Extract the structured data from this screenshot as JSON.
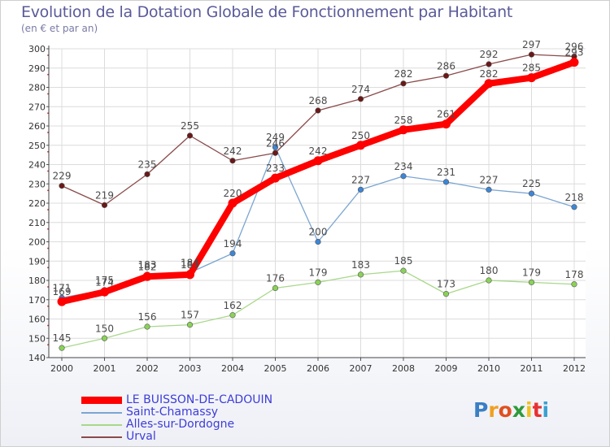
{
  "header": {
    "title": "Evolution de la Dotation Globale de Fonctionnement par Habitant",
    "subtitle": "(en € et par an)"
  },
  "logo": {
    "letters": [
      "P",
      "r",
      "o",
      "x",
      "i",
      "t",
      "i"
    ],
    "colors": [
      "#3a7fc4",
      "#f0a020",
      "#e05020",
      "#2e9a3a",
      "#f0c020",
      "#e83030",
      "#3aa0d0"
    ]
  },
  "chart_data": {
    "type": "line",
    "title": "Evolution de la Dotation Globale de Fonctionnement par Habitant",
    "subtitle": "(en € et par an)",
    "xlabel": "",
    "ylabel": "",
    "x": [
      2000,
      2001,
      2002,
      2003,
      2004,
      2005,
      2006,
      2007,
      2008,
      2009,
      2010,
      2011,
      2012
    ],
    "x_tick_labels": [
      "2000",
      "2001",
      "2002",
      "2003",
      "2004",
      "2005",
      "2006",
      "2007",
      "2008",
      "2009",
      "2010",
      "2011",
      "2012"
    ],
    "ylim": [
      140,
      300
    ],
    "y_ticks": [
      140,
      150,
      160,
      170,
      180,
      190,
      200,
      210,
      220,
      230,
      240,
      250,
      260,
      270,
      280,
      290,
      300
    ],
    "grid": true,
    "legend_position": "bottom-left",
    "series": [
      {
        "name": "LE BUISSON-DE-CADOUIN",
        "color": "#ff0000",
        "marker": "#ff0000",
        "width": "thick",
        "values": [
          169,
          174,
          182,
          183,
          220,
          233,
          242,
          250,
          258,
          261,
          282,
          285,
          293
        ]
      },
      {
        "name": "Saint-Chamassy",
        "color": "#7ba5d2",
        "marker": "#3d86d6",
        "width": "thin",
        "values": [
          171,
          175,
          183,
          184,
          194,
          249,
          200,
          227,
          234,
          231,
          227,
          225,
          218
        ]
      },
      {
        "name": "Alles-sur-Dordogne",
        "color": "#a8d88a",
        "marker": "#8ad258",
        "width": "thin",
        "values": [
          145,
          150,
          156,
          157,
          162,
          176,
          179,
          183,
          185,
          173,
          180,
          179,
          178
        ]
      },
      {
        "name": "Urval",
        "color": "#8a4a4a",
        "marker": "#6a1818",
        "width": "thin",
        "values": [
          229,
          219,
          235,
          255,
          242,
          246,
          268,
          274,
          282,
          286,
          292,
          297,
          296
        ]
      }
    ]
  }
}
